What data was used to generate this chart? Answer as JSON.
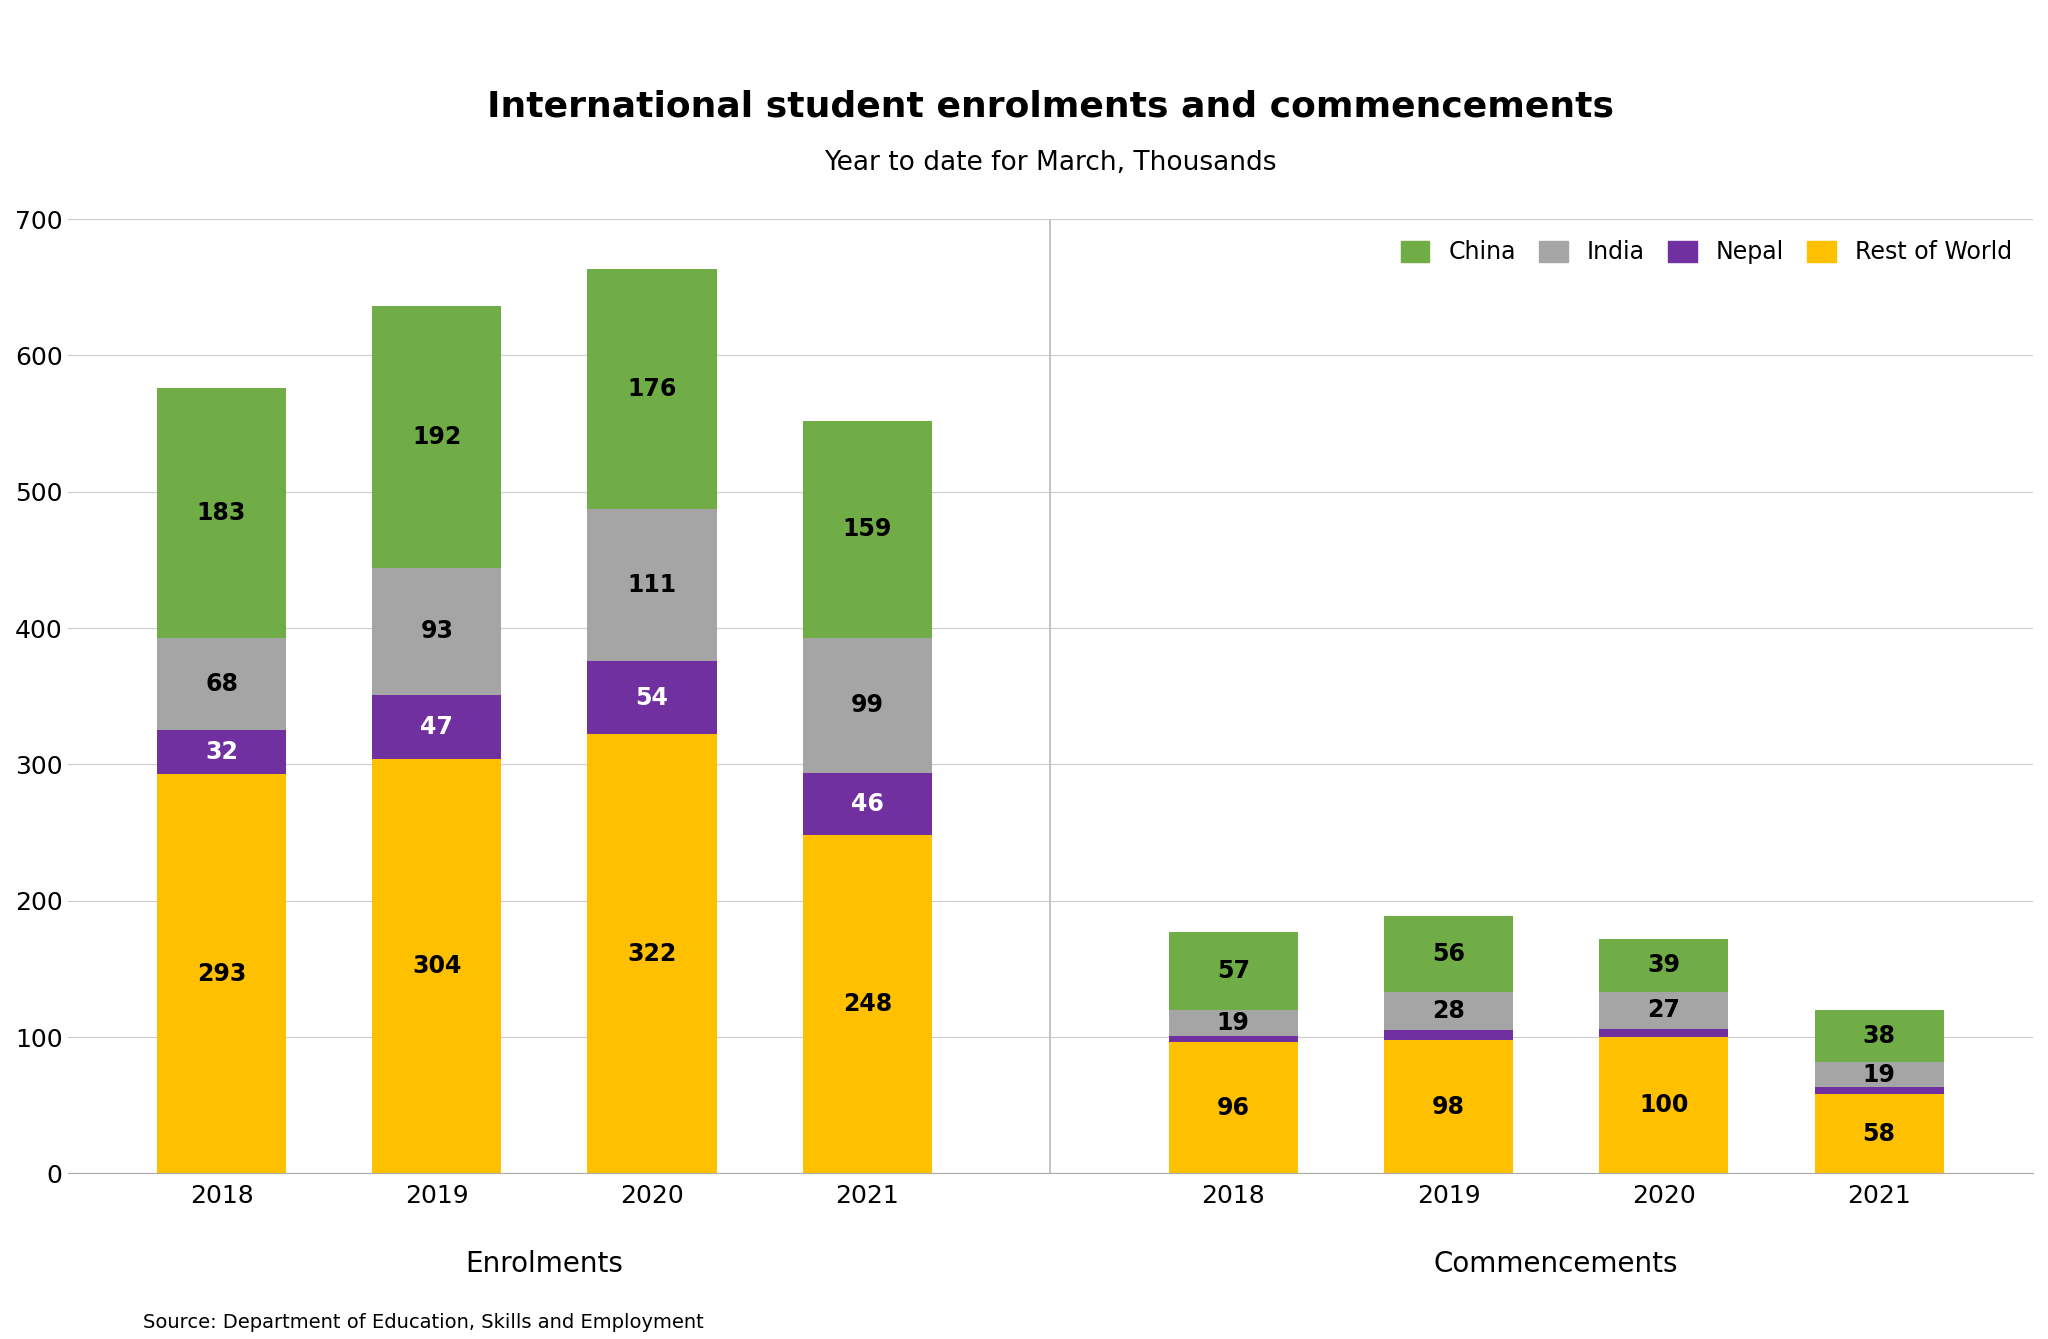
{
  "title": "International student enrolments and commencements",
  "subtitle": "Year to date for March, Thousands",
  "source": "Source: Department of Education, Skills and Employment",
  "groups": [
    "Enrolments",
    "Commencements"
  ],
  "years": [
    "2018",
    "2019",
    "2020",
    "2021"
  ],
  "enrolments": {
    "rest_of_world": [
      293,
      304,
      322,
      248
    ],
    "nepal": [
      32,
      47,
      54,
      46
    ],
    "india": [
      68,
      93,
      111,
      99
    ],
    "china": [
      183,
      192,
      176,
      159
    ]
  },
  "commencements": {
    "rest_of_world": [
      96,
      98,
      100,
      58
    ],
    "nepal": [
      5,
      7,
      6,
      5
    ],
    "india": [
      19,
      28,
      27,
      19
    ],
    "china": [
      57,
      56,
      39,
      38
    ]
  },
  "colors": {
    "china": "#70AD47",
    "india": "#A5A5A5",
    "nepal": "#7030A0",
    "rest_of_world": "#FFC000"
  },
  "ylim": [
    0,
    700
  ],
  "yticks": [
    0,
    100,
    200,
    300,
    400,
    500,
    600,
    700
  ],
  "bar_width": 0.6,
  "legend_labels": [
    "China",
    "India",
    "Nepal",
    "Rest of World"
  ],
  "legend_colors": [
    "#70AD47",
    "#A5A5A5",
    "#7030A0",
    "#FFC000"
  ],
  "label_fontsize": 17,
  "title_fontsize": 26,
  "subtitle_fontsize": 19,
  "tick_fontsize": 18,
  "group_label_fontsize": 20,
  "source_fontsize": 14
}
